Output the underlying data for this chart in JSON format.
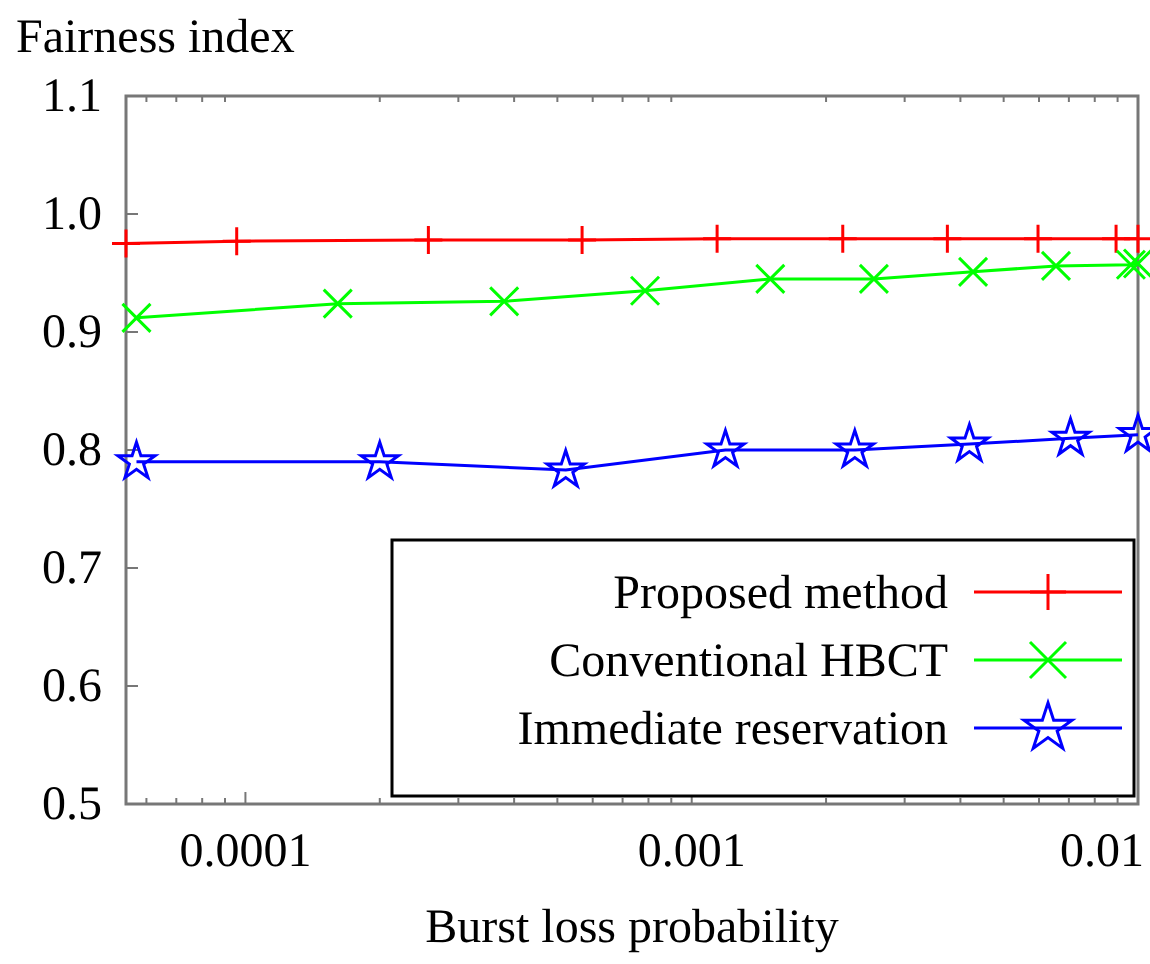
{
  "chart_data": {
    "type": "line",
    "ylabel": "Fairness index",
    "xlabel": "Burst loss probability",
    "log": "x",
    "xlim": [
      5.4e-05,
      0.01
    ],
    "xticks": [
      {
        "value": 0.0001,
        "label": "0.0001"
      },
      {
        "value": 0.001,
        "label": "0.001"
      },
      {
        "value": 0.01,
        "label": "0.01"
      }
    ],
    "ylim": [
      0.5,
      1.1
    ],
    "yticks": [
      {
        "value": 0.5,
        "label": "0.5"
      },
      {
        "value": 0.6,
        "label": "0.6"
      },
      {
        "value": 0.7,
        "label": "0.7"
      },
      {
        "value": 0.8,
        "label": "0.8"
      },
      {
        "value": 0.9,
        "label": "0.9"
      },
      {
        "value": 1.0,
        "label": "1.0"
      },
      {
        "value": 1.1,
        "label": "1.1"
      }
    ],
    "grid": false,
    "legend": "bottom right",
    "series": [
      {
        "name": "Proposed method",
        "color": "#ff0000",
        "marker": "cross",
        "x": [
          5.4e-05,
          9.56e-05,
          0.000257,
          0.000568,
          0.00114,
          0.00218,
          0.00374,
          0.00597,
          0.00893,
          0.01
        ],
        "values": [
          0.975,
          0.977,
          0.978,
          0.978,
          0.979,
          0.979,
          0.979,
          0.979,
          0.979,
          0.979
        ]
      },
      {
        "name": "Conventional HBCT",
        "color": "#00ff00",
        "marker": "x",
        "x": [
          5.7e-05,
          0.000161,
          0.00038,
          0.000786,
          0.0015,
          0.00256,
          0.00427,
          0.00655,
          0.00964,
          0.01
        ],
        "values": [
          0.912,
          0.924,
          0.926,
          0.935,
          0.945,
          0.945,
          0.951,
          0.956,
          0.957,
          0.958
        ]
      },
      {
        "name": "Immediate reservation",
        "color": "#0000ff",
        "marker": "star",
        "x": [
          5.7e-05,
          0.0002,
          0.000522,
          0.00119,
          0.00232,
          0.00419,
          0.00706,
          0.01
        ],
        "values": [
          0.79,
          0.79,
          0.783,
          0.8,
          0.8,
          0.805,
          0.81,
          0.813
        ]
      }
    ]
  }
}
